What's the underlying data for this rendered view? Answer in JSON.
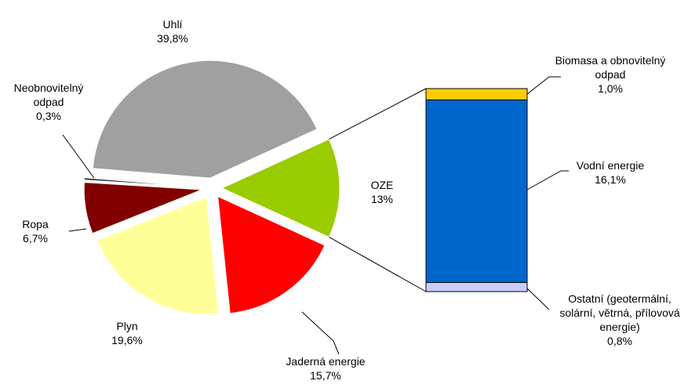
{
  "chart_data": [
    {
      "type": "pie",
      "categories": [
        "Uhlí",
        "OZE",
        "Jaderná energie",
        "Plyn",
        "Ropa",
        "Neobnovitelný odpad"
      ],
      "values": [
        39.8,
        13,
        15.7,
        19.6,
        6.7,
        0.3
      ],
      "value_labels": [
        "39,8%",
        "13%",
        "15,7%",
        "19,6%",
        "6,7%",
        "0,3%"
      ],
      "colors": [
        "#a0a0a0",
        "#99cc00",
        "#ff0000",
        "#ffff99",
        "#800000",
        "#333333"
      ]
    },
    {
      "type": "bar",
      "stacked": true,
      "categories": [
        "Biomasa a obnovitelný odpad",
        "Vodní energie",
        "Ostatní (geotermální, solární, větrná, přílovová energie)"
      ],
      "values": [
        1.0,
        16.1,
        0.8
      ],
      "value_labels": [
        "1,0%",
        "16,1%",
        "0,8%"
      ],
      "colors": [
        "#ffcc00",
        "#0066cc",
        "#ccccff"
      ]
    }
  ]
}
